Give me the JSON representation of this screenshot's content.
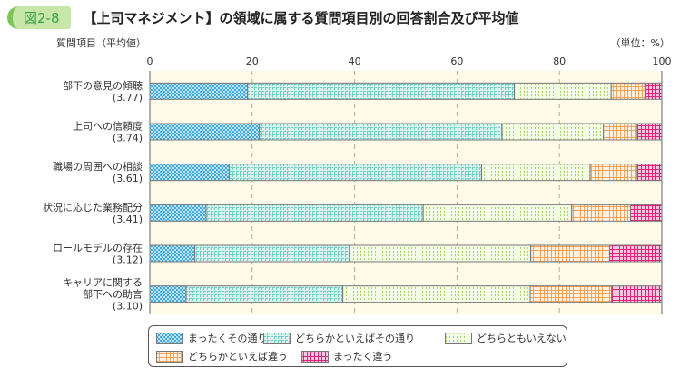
{
  "figure_label": "図2-8",
  "title": "【上司マネジメント】の領域に属する質問項目別の回答割合及び平均値",
  "chart_data": {
    "type": "bar",
    "orientation": "horizontal",
    "stacked": true,
    "ylabel": "質問項目（平均値）",
    "unit_label": "（単位：%）",
    "xlim": [
      0,
      100
    ],
    "xticks": [
      0,
      20,
      40,
      60,
      80,
      100
    ],
    "grid": true,
    "legend_position": "bottom",
    "categories": [
      {
        "label": "部下の意見の傾聴",
        "mean": "(3.77)"
      },
      {
        "label": "上司への信頼度",
        "mean": "(3.74)"
      },
      {
        "label": "職場の周囲への相談",
        "mean": "(3.61)"
      },
      {
        "label": "状況に応じた業務配分",
        "mean": "(3.41)"
      },
      {
        "label": "ロールモデルの存在",
        "mean": "(3.12)"
      },
      {
        "label": "キャリアに関する\n部下への助言",
        "mean": "(3.10)"
      }
    ],
    "series": [
      {
        "name": "まったくその通り",
        "color": "#3fa9e0",
        "values": [
          19.1,
          21.4,
          15.5,
          11.0,
          8.8,
          7.1
        ]
      },
      {
        "name": "どちらかといえばその通り",
        "color": "#6fcfc4",
        "values": [
          52.1,
          47.4,
          49.3,
          42.4,
          30.2,
          30.6
        ]
      },
      {
        "name": "どちらともいえない",
        "color": "#a8d86a",
        "values": [
          18.9,
          19.8,
          21.2,
          29.0,
          35.4,
          36.6
        ]
      },
      {
        "name": "どちらかといえば違う",
        "color": "#f5a25a",
        "values": [
          6.6,
          6.6,
          9.2,
          11.5,
          15.4,
          15.9
        ]
      },
      {
        "name": "まったく違う",
        "color": "#e0247a",
        "values": [
          3.3,
          4.8,
          4.8,
          6.1,
          10.2,
          9.8
        ]
      }
    ]
  }
}
